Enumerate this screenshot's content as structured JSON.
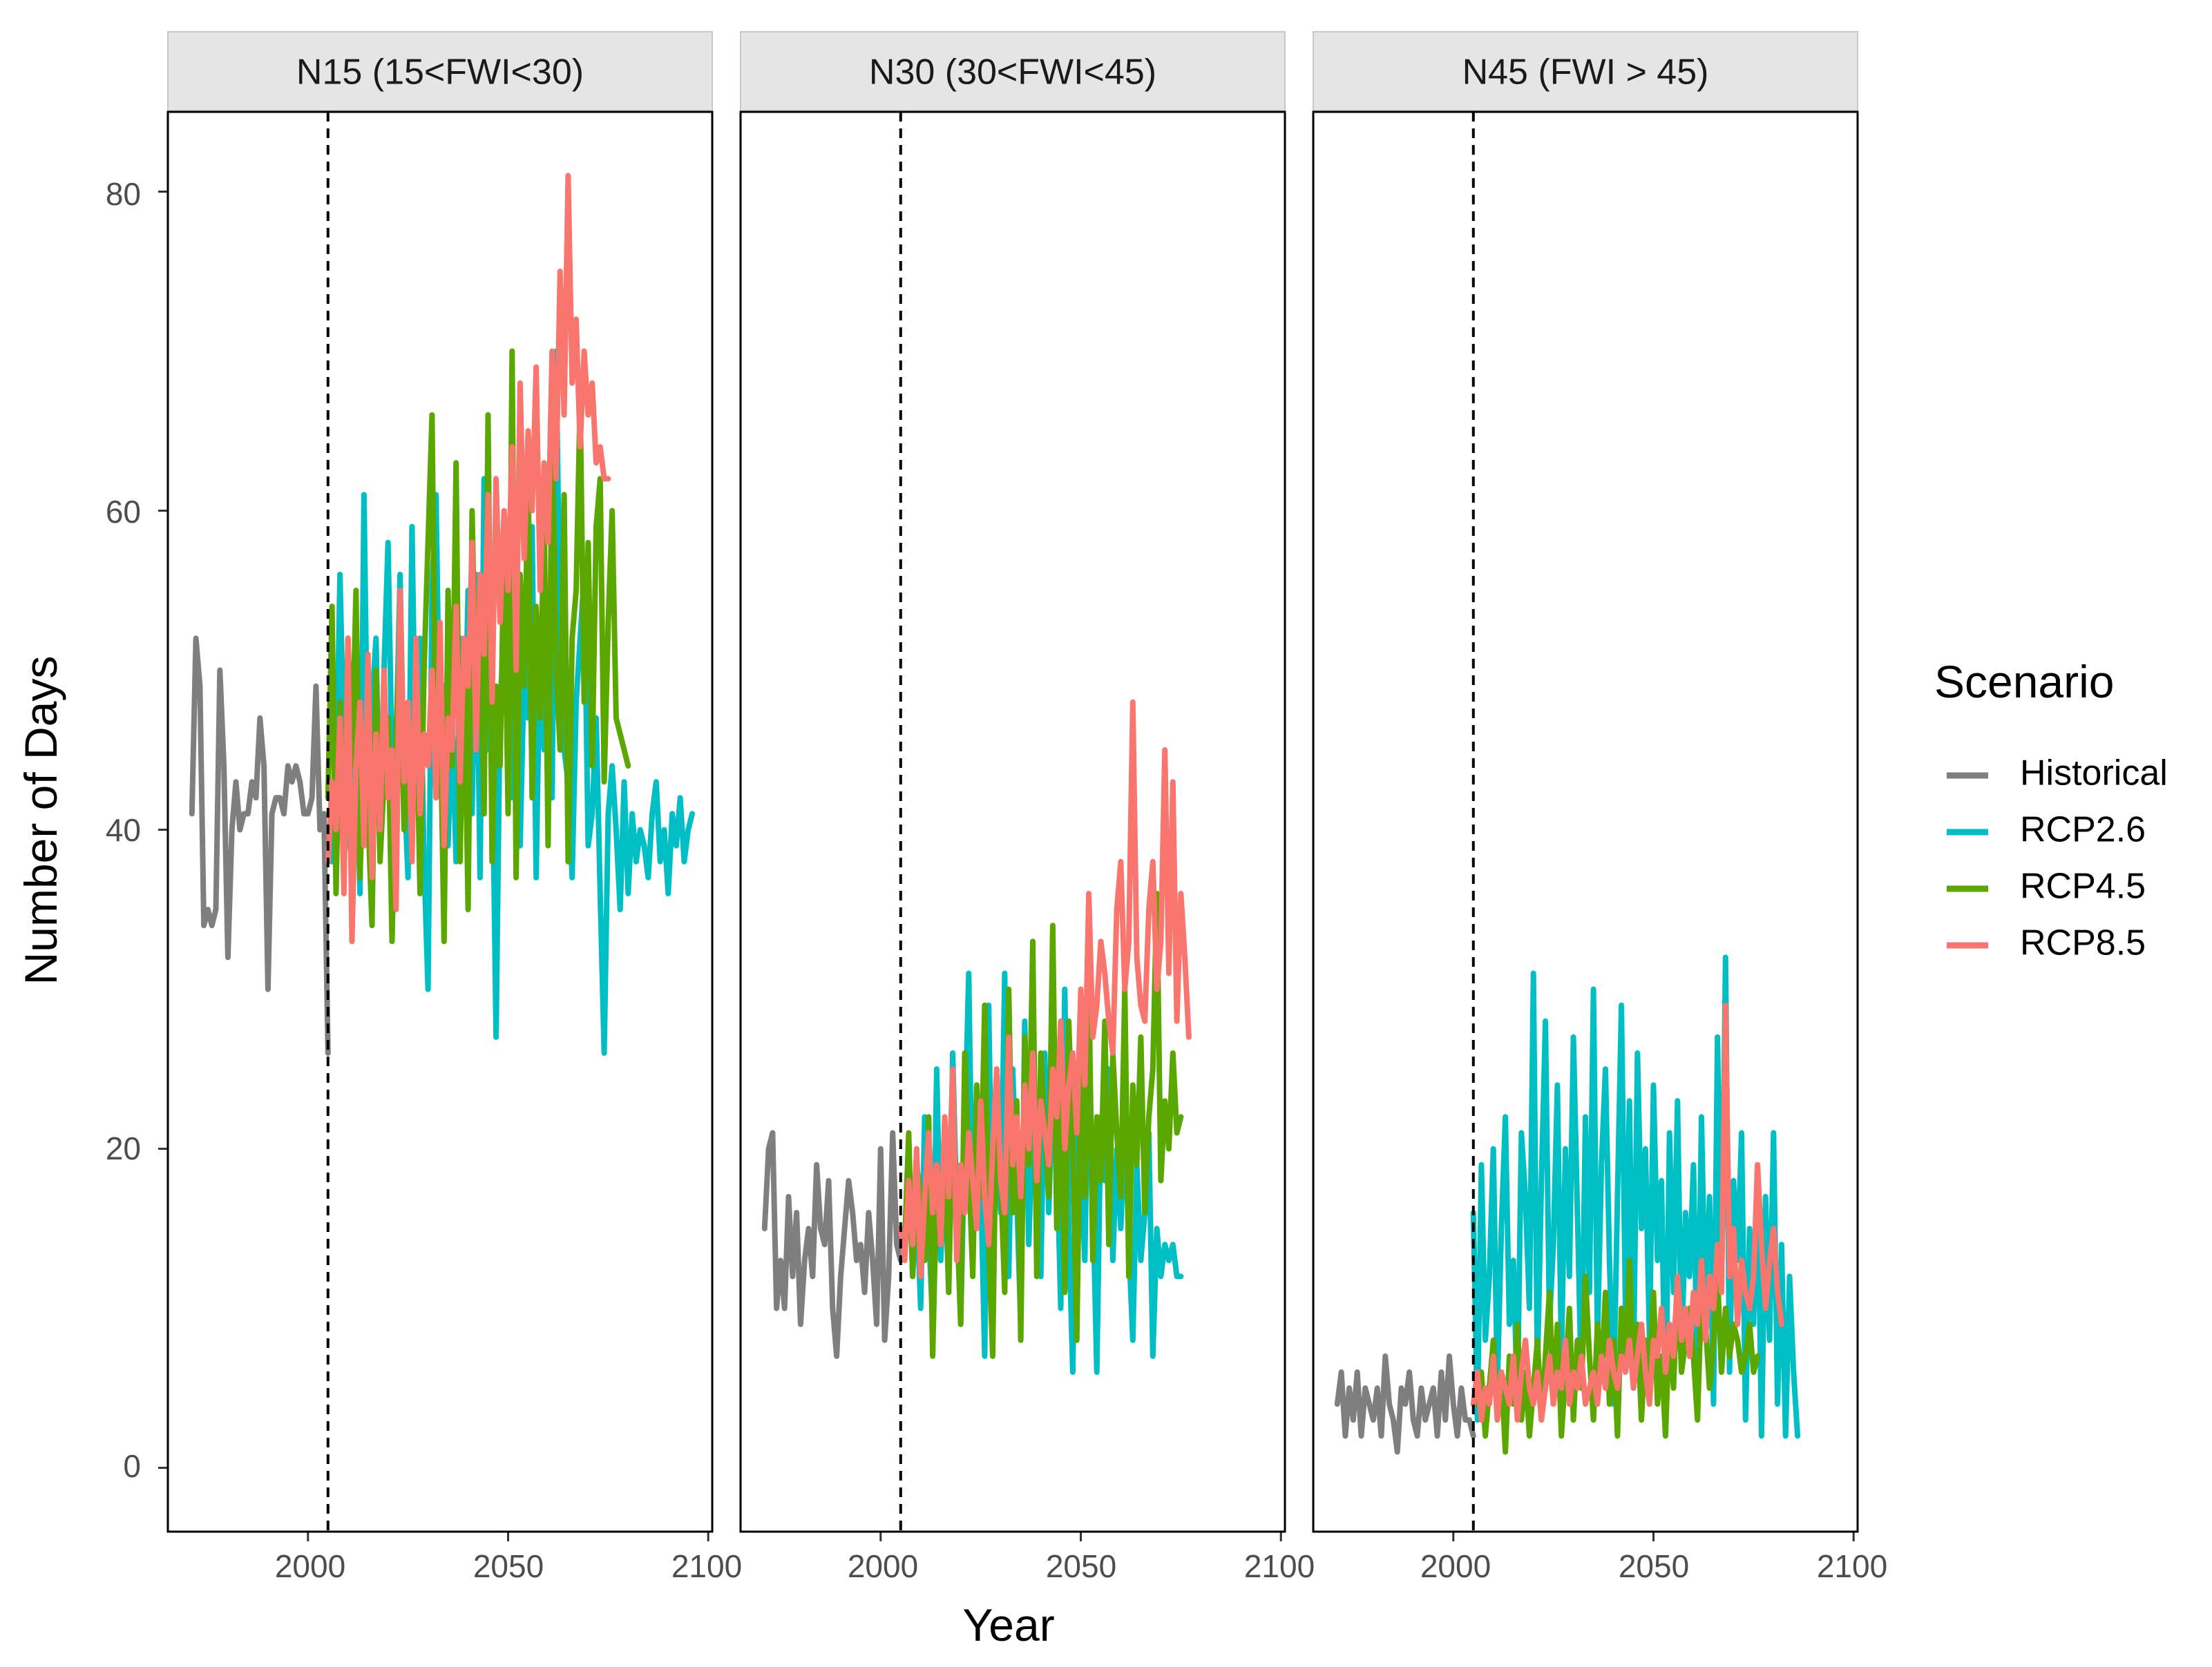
{
  "chart_data": {
    "type": "line",
    "ylabel": "Number of Days",
    "xlabel": "Year",
    "xlim": [
      1965,
      2101
    ],
    "ylim": [
      -4,
      85
    ],
    "x_ticks": [
      "2000",
      "2050",
      "2100"
    ],
    "y_ticks": [
      "0",
      "20",
      "40",
      "60",
      "80"
    ],
    "reference_line_year": 2005,
    "legend": {
      "title": "Scenario",
      "entries": [
        "Historical",
        "RCP2.6",
        "RCP4.5",
        "RCP8.5"
      ],
      "colors": [
        "#7f7f7f",
        "#00bfc4",
        "#5aa700",
        "#f8766d"
      ]
    },
    "panels": [
      {
        "title": "N15 (15<FWI<30)",
        "series": [
          {
            "name": "Historical",
            "color": "#7f7f7f",
            "x_start": 1971,
            "values": [
              41,
              52,
              49,
              34,
              35,
              34,
              35,
              50,
              44,
              32,
              40,
              43,
              40,
              41,
              41,
              43,
              42,
              47,
              44,
              30,
              41,
              42,
              42,
              41,
              44,
              43,
              44,
              43,
              41,
              41,
              42,
              49,
              40,
              41,
              26
            ]
          },
          {
            "name": "RCP2.6",
            "color": "#00bfc4",
            "x_start": 2006,
            "values": [
              38,
              42,
              56,
              45,
              40,
              38,
              47,
              36,
              61,
              42,
              48,
              52,
              39,
              50,
              58,
              44,
              45,
              56,
              43,
              37,
              59,
              42,
              52,
              38,
              30,
              55,
              61,
              44,
              49,
              39,
              47,
              38,
              52,
              43,
              55,
              41,
              56,
              37,
              62,
              45,
              46,
              27,
              48,
              52,
              57,
              42,
              45,
              39,
              50,
              47,
              59,
              37,
              52,
              45,
              55,
              42,
              70,
              52,
              45,
              43,
              37,
              48,
              52,
              56,
              39,
              41,
              47,
              36,
              26,
              41,
              44,
              40,
              35,
              43,
              36,
              41,
              38,
              40,
              39,
              37,
              41,
              43,
              38,
              40,
              36,
              41,
              39,
              42,
              38,
              40,
              41
            ]
          },
          {
            "name": "RCP4.5",
            "color": "#5aa700",
            "x_start": 2005,
            "values": [
              42,
              54,
              36,
              48,
              38,
              52,
              44,
              55,
              37,
              45,
              41,
              34,
              50,
              38,
              43,
              47,
              33,
              46,
              52,
              40,
              45,
              39,
              49,
              36,
              50,
              58,
              66,
              42,
              48,
              33,
              55,
              44,
              63,
              38,
              51,
              35,
              60,
              47,
              53,
              41,
              66,
              38,
              49,
              44,
              58,
              41,
              70,
              37,
              56,
              49,
              62,
              42,
              54,
              47,
              60,
              39,
              65,
              50,
              45,
              61,
              38,
              52,
              55,
              67,
              48,
              58,
              44,
              59,
              62,
              43,
              53,
              60,
              47,
              46,
              45,
              44
            ]
          },
          {
            "name": "RCP8.5",
            "color": "#f8766d",
            "x_start": 2005,
            "values": [
              38,
              43,
              40,
              47,
              36,
              52,
              33,
              44,
              48,
              39,
              51,
              37,
              46,
              40,
              50,
              42,
              45,
              35,
              55,
              43,
              48,
              38,
              52,
              41,
              46,
              44,
              50,
              42,
              53,
              39,
              47,
              45,
              54,
              43,
              52,
              49,
              58,
              45,
              56,
              51,
              61,
              48,
              62,
              53,
              60,
              55,
              64,
              50,
              68,
              57,
              65,
              60,
              69,
              55,
              63,
              58,
              70,
              62,
              75,
              66,
              81,
              68,
              72,
              64,
              70,
              66,
              68,
              63,
              64,
              62,
              62
            ]
          }
        ]
      },
      {
        "title": "N30 (30<FWI<45)",
        "series": [
          {
            "name": "Historical",
            "color": "#7f7f7f",
            "x_start": 1971,
            "values": [
              15,
              20,
              21,
              10,
              13,
              10,
              17,
              12,
              16,
              9,
              13,
              15,
              12,
              19,
              15,
              14,
              18,
              10,
              7,
              12,
              15,
              18,
              16,
              13,
              14,
              11,
              16,
              13,
              9,
              20,
              8,
              12,
              21,
              14,
              13
            ]
          },
          {
            "name": "RCP2.6",
            "color": "#00bfc4",
            "x_start": 2006,
            "values": [
              14,
              19,
              12,
              17,
              10,
              22,
              15,
              9,
              25,
              13,
              19,
              11,
              26,
              16,
              9,
              21,
              31,
              14,
              24,
              18,
              7,
              29,
              13,
              20,
              16,
              31,
              12,
              25,
              17,
              9,
              28,
              14,
              22,
              19,
              12,
              26,
              16,
              24,
              20,
              10,
              30,
              15,
              6,
              23,
              19,
              13,
              27,
              17,
              6,
              22,
              18,
              25,
              13,
              20,
              15,
              22,
              14,
              8,
              19,
              13,
              16,
              21,
              7,
              15,
              12,
              14,
              13,
              14,
              12,
              12
            ]
          },
          {
            "name": "RCP4.5",
            "color": "#5aa700",
            "x_start": 2006,
            "values": [
              14,
              21,
              12,
              19,
              17,
              13,
              22,
              7,
              18,
              14,
              20,
              11,
              23,
              16,
              9,
              26,
              19,
              12,
              24,
              17,
              29,
              14,
              7,
              25,
              18,
              11,
              30,
              16,
              23,
              8,
              27,
              19,
              33,
              12,
              26,
              21,
              17,
              34,
              15,
              24,
              11,
              28,
              20,
              8,
              25,
              17,
              31,
              13,
              22,
              18,
              28,
              14,
              26,
              21,
              17,
              30,
              12,
              24,
              19,
              27,
              16,
              22,
              25,
              36,
              18,
              23,
              20,
              26,
              21,
              22
            ]
          },
          {
            "name": "RCP8.5",
            "color": "#f8766d",
            "x_start": 2005,
            "values": [
              15,
              13,
              18,
              14,
              20,
              12,
              17,
              21,
              16,
              19,
              14,
              22,
              17,
              25,
              13,
              19,
              16,
              21,
              18,
              15,
              23,
              17,
              14,
              20,
              25,
              18,
              16,
              27,
              19,
              22,
              17,
              24,
              20,
              26,
              18,
              23,
              21,
              19,
              25,
              22,
              28,
              20,
              24,
              26,
              21,
              30,
              24,
              36,
              27,
              29,
              33,
              31,
              28,
              26,
              35,
              38,
              30,
              33,
              48,
              32,
              29,
              28,
              35,
              38,
              30,
              33,
              45,
              31,
              43,
              28,
              36,
              32,
              27
            ]
          }
        ]
      },
      {
        "title": "N45 (FWI > 45)",
        "series": [
          {
            "name": "Historical",
            "color": "#7f7f7f",
            "x_start": 1971,
            "values": [
              4,
              6,
              2,
              5,
              3,
              6,
              2,
              5,
              4,
              3,
              5,
              2,
              7,
              4,
              3,
              1,
              5,
              4,
              6,
              3,
              2,
              5,
              3,
              4,
              5,
              2,
              6,
              3,
              7,
              4,
              2,
              5,
              3,
              3,
              2
            ]
          },
          {
            "name": "RCP2.6",
            "color": "#00bfc4",
            "x_start": 2005,
            "values": [
              16,
              3,
              19,
              8,
              12,
              20,
              5,
              15,
              22,
              9,
              13,
              4,
              21,
              17,
              10,
              31,
              6,
              18,
              28,
              9,
              14,
              24,
              7,
              20,
              12,
              27,
              16,
              5,
              22,
              11,
              30,
              8,
              19,
              25,
              13,
              4,
              17,
              29,
              10,
              23,
              6,
              26,
              15,
              20,
              8,
              24,
              13,
              18,
              3,
              21,
              11,
              23,
              7,
              16,
              12,
              19,
              5,
              22,
              9,
              17,
              4,
              27,
              11,
              32,
              6,
              18,
              13,
              21,
              3,
              15,
              9,
              19,
              2,
              17,
              8,
              21,
              4,
              14,
              2,
              12,
              6,
              2
            ]
          },
          {
            "name": "RCP4.5",
            "color": "#5aa700",
            "x_start": 2006,
            "values": [
              4,
              6,
              2,
              5,
              8,
              3,
              6,
              1,
              7,
              4,
              9,
              3,
              6,
              2,
              5,
              8,
              3,
              7,
              11,
              4,
              9,
              2,
              6,
              10,
              3,
              8,
              5,
              12,
              7,
              3,
              9,
              6,
              11,
              4,
              8,
              2,
              10,
              7,
              13,
              5,
              9,
              3,
              8,
              6,
              11,
              4,
              7,
              2,
              9,
              5,
              12,
              6,
              8,
              10,
              7,
              3,
              11,
              9,
              5,
              8,
              12,
              6,
              10,
              7,
              9,
              8,
              6,
              7,
              9,
              6,
              7
            ]
          },
          {
            "name": "RCP8.5",
            "color": "#f8766d",
            "x_start": 2005,
            "values": [
              4,
              6,
              3,
              5,
              4,
              7,
              3,
              6,
              5,
              4,
              7,
              3,
              6,
              8,
              5,
              4,
              6,
              3,
              5,
              7,
              4,
              6,
              5,
              8,
              4,
              6,
              5,
              7,
              4,
              5,
              6,
              4,
              7,
              5,
              8,
              6,
              5,
              7,
              6,
              8,
              5,
              7,
              9,
              6,
              4,
              8,
              7,
              10,
              6,
              9,
              7,
              12,
              8,
              10,
              7,
              11,
              9,
              13,
              8,
              12,
              10,
              14,
              11,
              29,
              12,
              15,
              9,
              13,
              11,
              10,
              12,
              19,
              14,
              10,
              13,
              15,
              11,
              9
            ]
          }
        ]
      }
    ]
  }
}
